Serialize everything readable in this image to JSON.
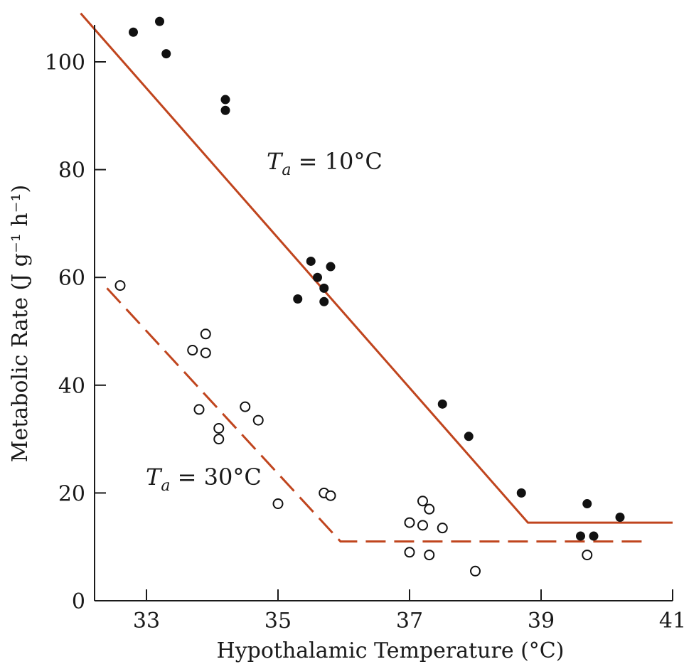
{
  "chart_data": {
    "type": "scatter",
    "xlabel": "Hypothalamic Temperature (°C)",
    "ylabel": "Metabolic Rate (J g⁻¹ h⁻¹)",
    "xlim": [
      32.2,
      41
    ],
    "ylim": [
      0,
      110
    ],
    "xticks": [
      33,
      35,
      37,
      39,
      41
    ],
    "yticks": [
      0,
      20,
      40,
      60,
      80,
      100
    ],
    "grid": false,
    "line_color": "#c0451e",
    "series": [
      {
        "marker": "filled",
        "points": [
          [
            32.8,
            105.5
          ],
          [
            33.2,
            107.5
          ],
          [
            33.3,
            101.5
          ],
          [
            34.2,
            93
          ],
          [
            34.2,
            91
          ],
          [
            35.3,
            56
          ],
          [
            35.5,
            63
          ],
          [
            35.6,
            60
          ],
          [
            35.7,
            58
          ],
          [
            35.7,
            55.5
          ],
          [
            35.8,
            62
          ],
          [
            37.5,
            36.5
          ],
          [
            37.9,
            30.5
          ],
          [
            38.7,
            20
          ],
          [
            39.6,
            12
          ],
          [
            39.7,
            18
          ],
          [
            39.8,
            12
          ],
          [
            40.2,
            15.5
          ]
        ],
        "fit": {
          "style": "solid",
          "points": [
            [
              32.0,
              109
            ],
            [
              38.8,
              14.5
            ],
            [
              41,
              14.5
            ]
          ]
        },
        "annotation_parts": {
          "prefix": "T",
          "subscript": "a",
          "rest": " = 10°C"
        }
      },
      {
        "marker": "open",
        "points": [
          [
            32.6,
            58.5
          ],
          [
            33.7,
            46.5
          ],
          [
            33.8,
            35.5
          ],
          [
            33.9,
            49.5
          ],
          [
            33.9,
            46
          ],
          [
            34.1,
            32
          ],
          [
            34.1,
            30
          ],
          [
            34.5,
            36
          ],
          [
            34.7,
            33.5
          ],
          [
            35.0,
            18
          ],
          [
            35.7,
            20
          ],
          [
            35.8,
            19.5
          ],
          [
            37.0,
            14.5
          ],
          [
            37.0,
            9
          ],
          [
            37.2,
            14
          ],
          [
            37.2,
            18.5
          ],
          [
            37.3,
            17
          ],
          [
            37.3,
            8.5
          ],
          [
            37.5,
            13.5
          ],
          [
            38.0,
            5.5
          ],
          [
            39.7,
            8.5
          ]
        ],
        "fit": {
          "style": "dashed",
          "points": [
            [
              32.4,
              58
            ],
            [
              35.95,
              11
            ],
            [
              40.6,
              11
            ]
          ]
        },
        "annotation_parts": {
          "prefix": "T",
          "subscript": "a",
          "rest": " = 30°C"
        }
      }
    ]
  }
}
